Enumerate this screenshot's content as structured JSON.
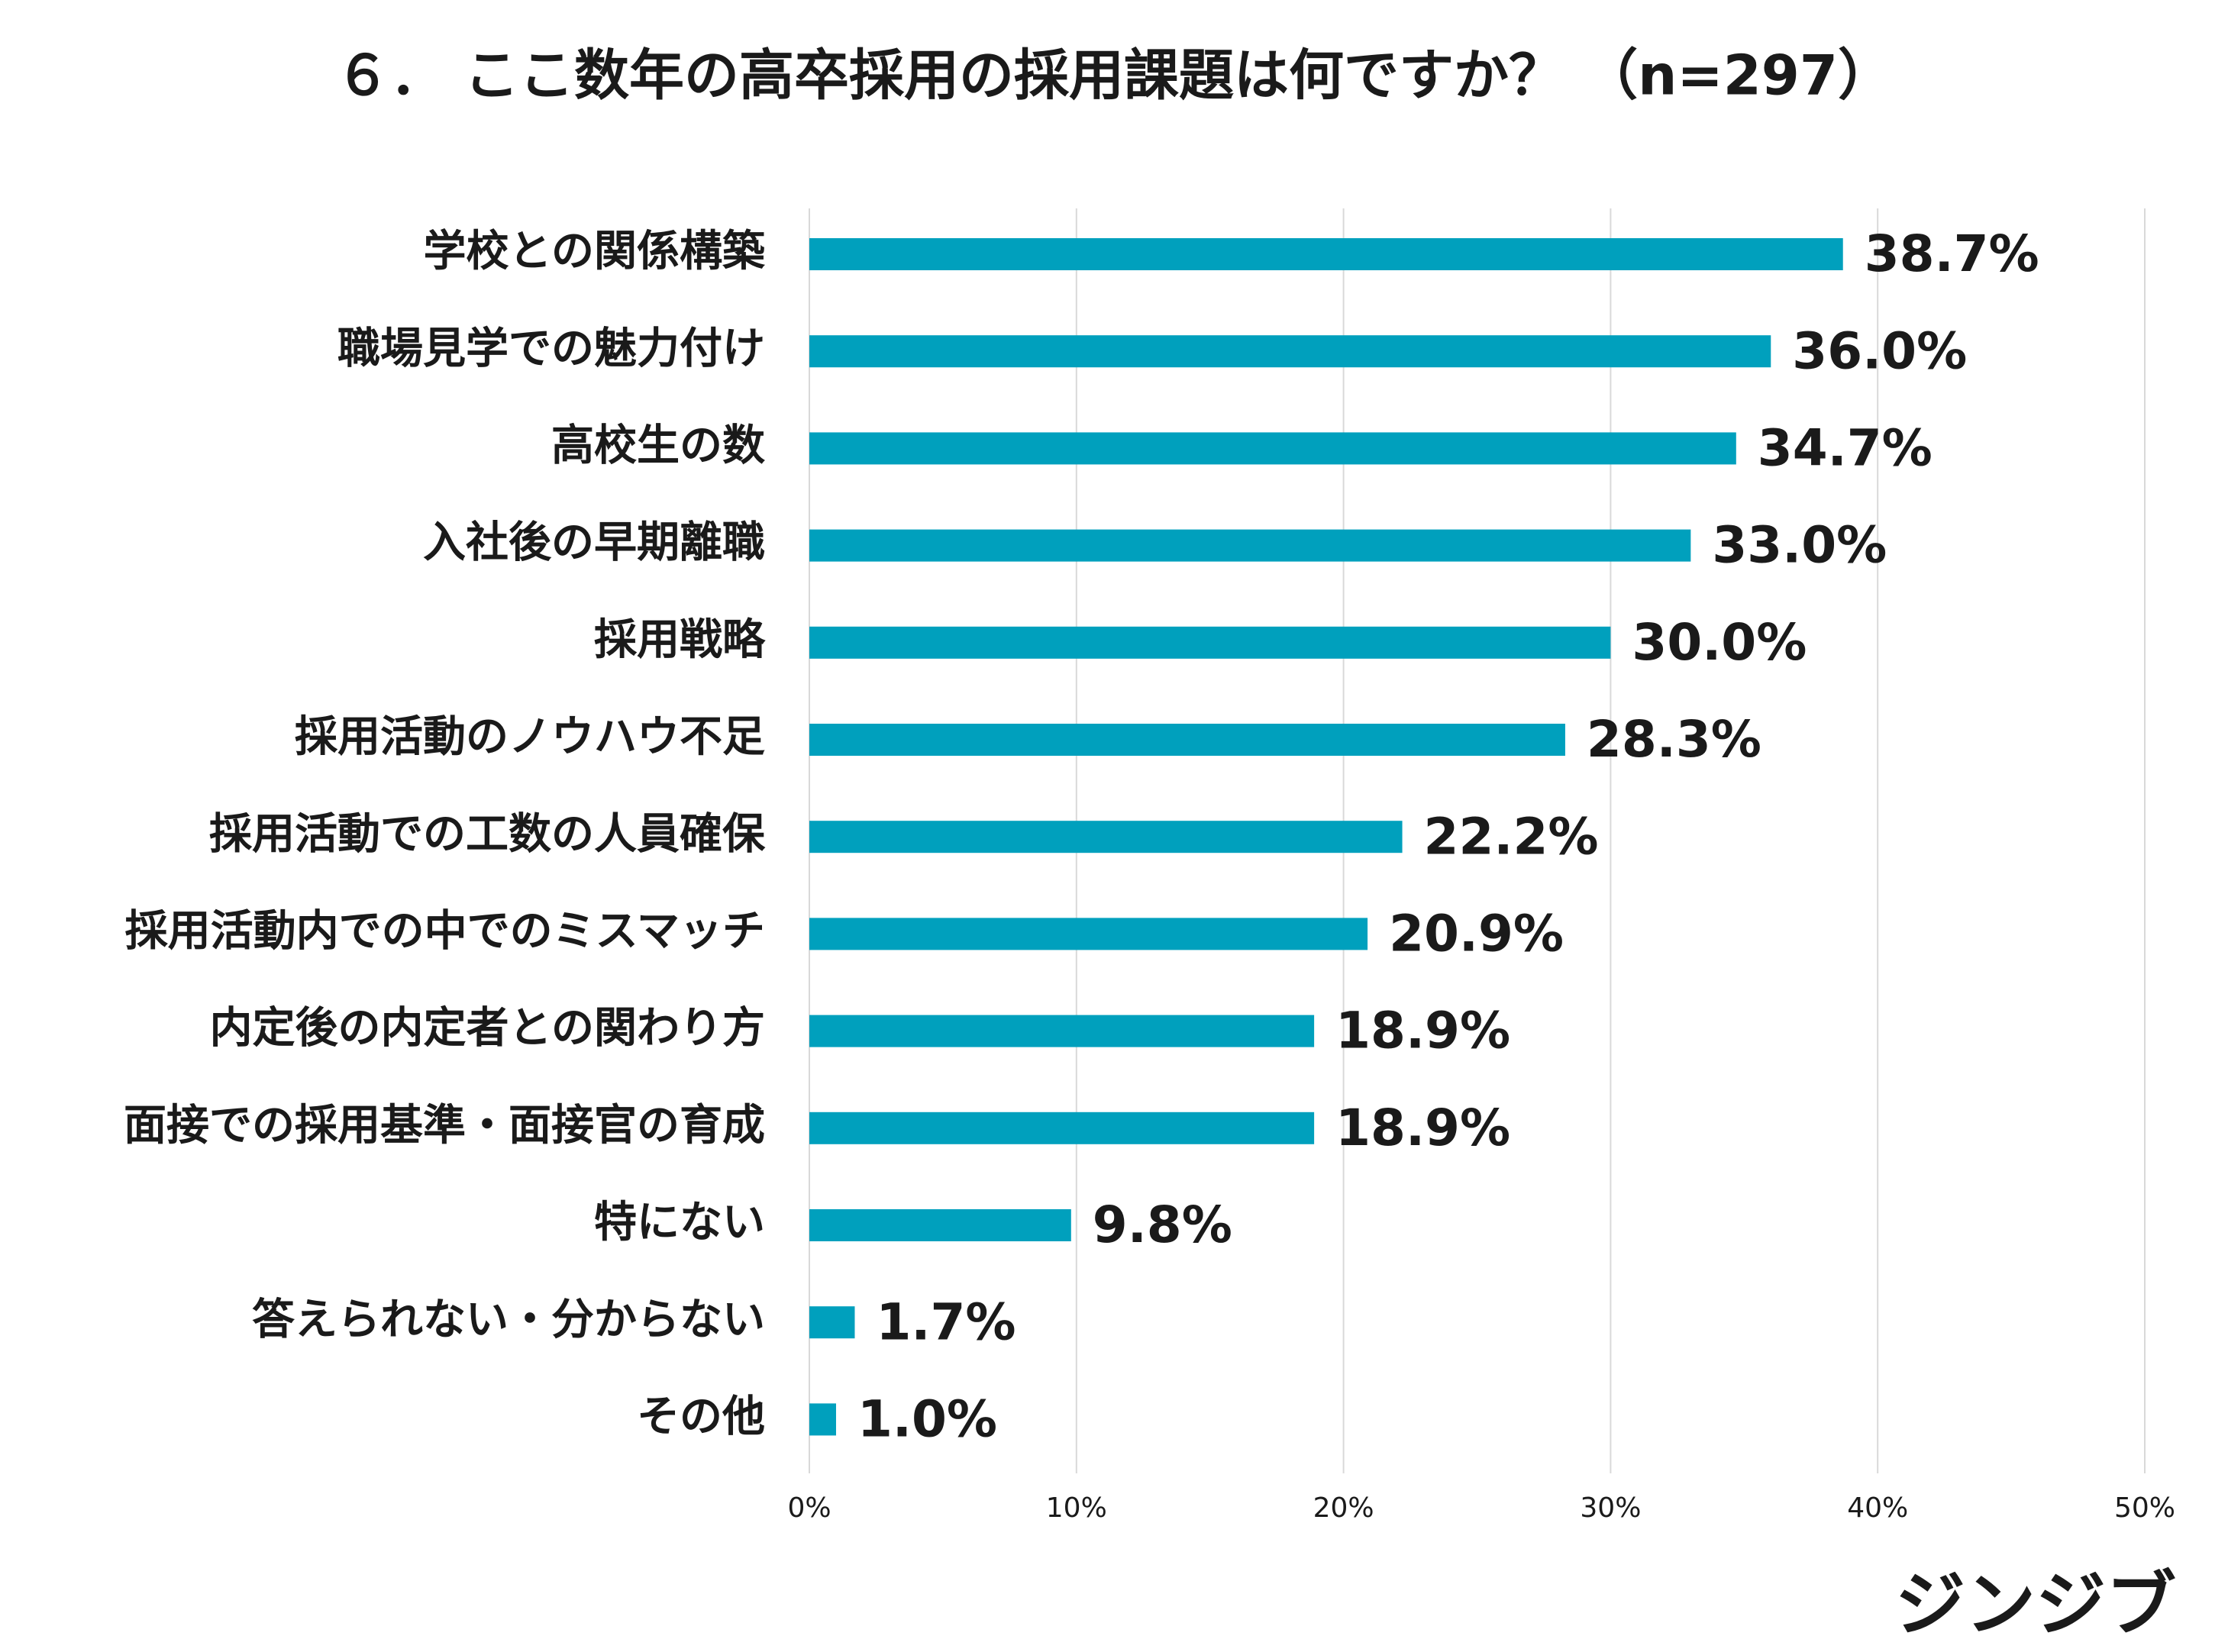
{
  "chart_data": {
    "type": "barh",
    "title": "６． ここ数年の高卒採用の採用課題は何ですか？ （n=297）",
    "categories": [
      "学校との関係構築",
      "職場見学での魅力付け",
      "高校生の数",
      "入社後の早期離職",
      "採用戦略",
      "採用活動のノウハウ不足",
      "採用活動での工数の人員確保",
      "採用活動内での中でのミスマッチ",
      "内定後の内定者との関わり方",
      "面接での採用基準・面接官の育成",
      "特にない",
      "答えられない・分からない",
      "その他"
    ],
    "values": [
      38.7,
      36.0,
      34.7,
      33.0,
      30.0,
      28.3,
      22.2,
      20.9,
      18.9,
      18.9,
      9.8,
      1.7,
      1.0
    ],
    "value_labels": [
      "38.7%",
      "36.0%",
      "34.7%",
      "33.0%",
      "30.0%",
      "28.3%",
      "22.2%",
      "20.9%",
      "18.9%",
      "18.9%",
      "9.8%",
      "1.7%",
      "1.0%"
    ],
    "color": "#00a0bd",
    "xlim": [
      0,
      50
    ],
    "xticks": [
      {
        "value": 0,
        "label": "0%"
      },
      {
        "value": 10,
        "label": "10%"
      },
      {
        "value": 20,
        "label": "20%"
      },
      {
        "value": 30,
        "label": "30%"
      },
      {
        "value": 40,
        "label": "40%"
      },
      {
        "value": 50,
        "label": "50%"
      }
    ],
    "grid": true
  },
  "brand": "ジンジブ"
}
